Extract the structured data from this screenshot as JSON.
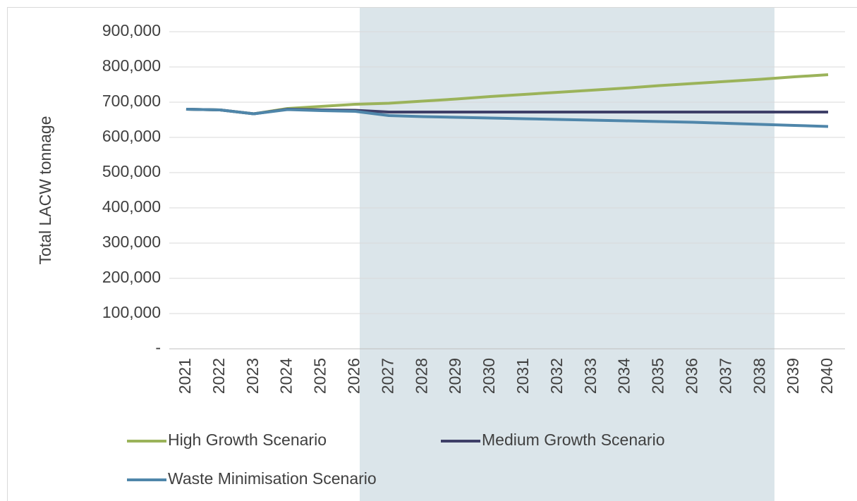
{
  "chart_data": {
    "type": "line",
    "y_axis_label": "Total LACW tonnage",
    "categories": [
      "2021",
      "2022",
      "2023",
      "2024",
      "2025",
      "2026",
      "2027",
      "2028",
      "2029",
      "2030",
      "2031",
      "2032",
      "2033",
      "2034",
      "2035",
      "2036",
      "2037",
      "2038",
      "2039",
      "2040"
    ],
    "series": [
      {
        "name": "High Growth Scenario",
        "color": "#9bb35a",
        "values": [
          680000,
          678000,
          667000,
          682000,
          688000,
          694000,
          697000,
          703000,
          709000,
          716000,
          722000,
          728000,
          734000,
          740000,
          747000,
          753000,
          759000,
          765000,
          772000,
          778000
        ]
      },
      {
        "name": "Medium Growth Scenario",
        "color": "#3e3f68",
        "values": [
          680000,
          678000,
          667000,
          680000,
          678000,
          677000,
          672000,
          672000,
          672000,
          672000,
          672000,
          672000,
          672000,
          672000,
          672000,
          672000,
          672000,
          672000,
          672000,
          672000
        ]
      },
      {
        "name": "Waste Minimisation Scenario",
        "color": "#4f86aa",
        "values": [
          680000,
          678000,
          667000,
          679000,
          676000,
          674000,
          662000,
          659000,
          657000,
          655000,
          653000,
          651000,
          649000,
          647000,
          645000,
          643000,
          640000,
          637000,
          634000,
          631000
        ]
      }
    ],
    "ylim": [
      0,
      900000
    ],
    "yticks": [
      {
        "value": 0,
        "label": "-"
      },
      {
        "value": 100000,
        "label": "100,000"
      },
      {
        "value": 200000,
        "label": "200,000"
      },
      {
        "value": 300000,
        "label": "300,000"
      },
      {
        "value": 400000,
        "label": "400,000"
      },
      {
        "value": 500000,
        "label": "500,000"
      },
      {
        "value": 600000,
        "label": "600,000"
      },
      {
        "value": 700000,
        "label": "700,000"
      },
      {
        "value": 800000,
        "label": "800,000"
      },
      {
        "value": 900000,
        "label": "900,000"
      }
    ],
    "grid": true
  }
}
